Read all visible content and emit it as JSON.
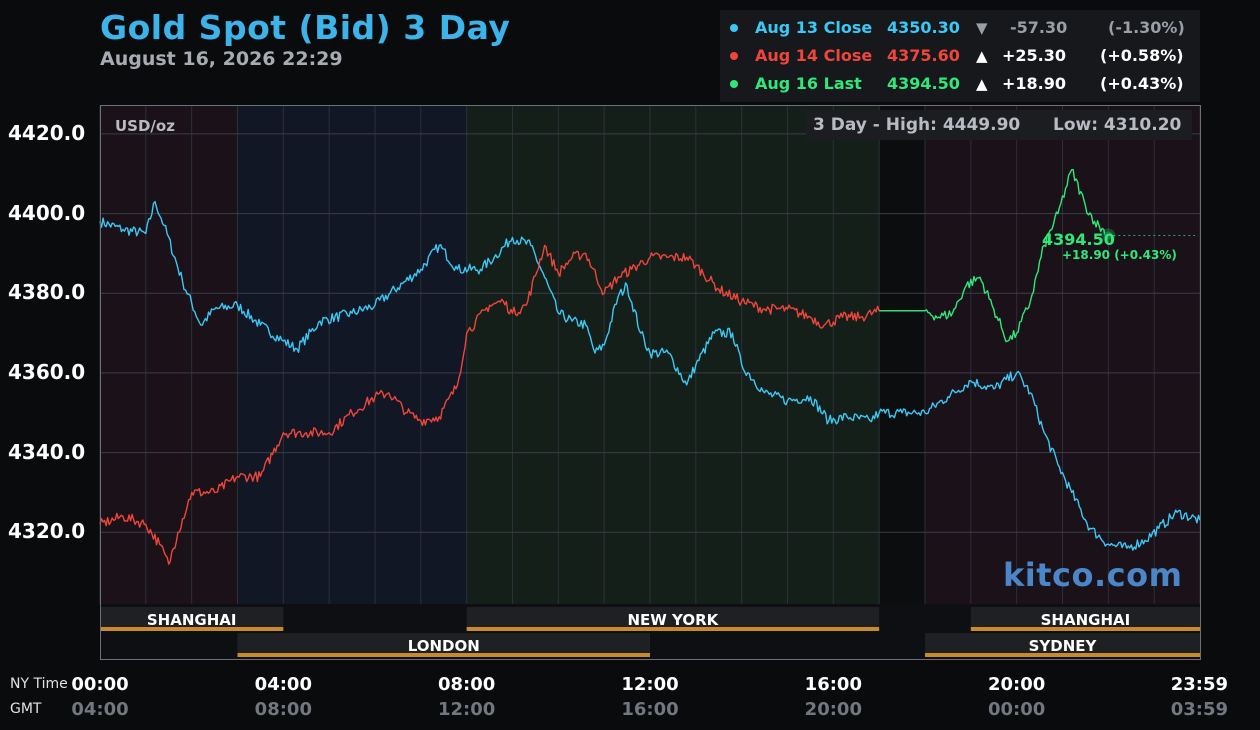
{
  "header": {
    "title": "Gold Spot (Bid) 3 Day",
    "date": "August 16, 2026 22:29"
  },
  "legend": [
    {
      "label": "Aug 13 Close",
      "price": "4350.30",
      "arrow": "▼",
      "change": "-57.30",
      "pct": "(-1.30%)",
      "color": "#3cc8f5",
      "value_color": "#9a9ea6"
    },
    {
      "label": "Aug 14 Close",
      "price": "4375.60",
      "arrow": "▲",
      "change": "+25.30",
      "pct": "(+0.58%)",
      "color": "#f0453a",
      "value_color": "#ffffff"
    },
    {
      "label": "Aug 16 Last",
      "price": "4394.50",
      "arrow": "▲",
      "change": "+18.90",
      "pct": "(+0.43%)",
      "color": "#2ee87a",
      "value_color": "#ffffff"
    }
  ],
  "chart": {
    "unit_label": "USD/oz",
    "high_label": "3 Day - High: 4449.90",
    "low_label": "Low: 4310.20",
    "watermark": "kitco.com",
    "last_price": "4394.50",
    "last_change": "+18.90 (+0.43%)",
    "y_ticks": [
      "4420.0",
      "4400.0",
      "4380.0",
      "4360.0",
      "4340.0",
      "4320.0"
    ],
    "x_ticks_ny": [
      "00:00",
      "04:00",
      "08:00",
      "12:00",
      "16:00",
      "20:00",
      "23:59"
    ],
    "x_ticks_gmt": [
      "04:00",
      "08:00",
      "12:00",
      "16:00",
      "20:00",
      "00:00",
      "03:59"
    ],
    "tz_ny": "NY Time",
    "tz_gmt": "GMT",
    "sessions": [
      {
        "name": "SHANGHAI",
        "start": 0,
        "end": 4,
        "row": 1
      },
      {
        "name": "NEW YORK",
        "start": 8,
        "end": 17,
        "row": 1
      },
      {
        "name": "SHANGHAI",
        "start": 19,
        "end": 24,
        "row": 1
      },
      {
        "name": "LONDON",
        "start": 3,
        "end": 12,
        "row": 2
      },
      {
        "name": "SYDNEY",
        "start": 18,
        "end": 24,
        "row": 2
      }
    ]
  },
  "chart_data": {
    "type": "line",
    "title": "Gold Spot (Bid) 3 Day",
    "ylabel": "USD/oz",
    "ylim": [
      4302,
      4427
    ],
    "xlim_hours": [
      0,
      24
    ],
    "x_unit": "NY time (hours)",
    "series": [
      {
        "name": "Aug 13 Close",
        "color": "#3cc8f5",
        "points": [
          [
            0,
            4398
          ],
          [
            0.5,
            4396
          ],
          [
            1,
            4395
          ],
          [
            1.2,
            4403
          ],
          [
            1.4,
            4397
          ],
          [
            1.8,
            4383
          ],
          [
            2.2,
            4372
          ],
          [
            2.5,
            4376
          ],
          [
            3,
            4377
          ],
          [
            3.5,
            4372
          ],
          [
            4,
            4368
          ],
          [
            4.3,
            4366
          ],
          [
            4.8,
            4373
          ],
          [
            5.5,
            4375
          ],
          [
            6,
            4377
          ],
          [
            7,
            4386
          ],
          [
            7.4,
            4392
          ],
          [
            7.8,
            4386
          ],
          [
            8.3,
            4386
          ],
          [
            8.6,
            4389
          ],
          [
            9,
            4394
          ],
          [
            9.4,
            4392
          ],
          [
            9.7,
            4384
          ],
          [
            10,
            4375
          ],
          [
            10.3,
            4373
          ],
          [
            10.6,
            4372
          ],
          [
            10.8,
            4365
          ],
          [
            11,
            4367
          ],
          [
            11.3,
            4379
          ],
          [
            11.5,
            4382
          ],
          [
            11.8,
            4370
          ],
          [
            12,
            4365
          ],
          [
            12.4,
            4365
          ],
          [
            12.8,
            4357
          ],
          [
            13,
            4362
          ],
          [
            13.4,
            4370
          ],
          [
            13.8,
            4370
          ],
          [
            14,
            4362
          ],
          [
            14.5,
            4355
          ],
          [
            15,
            4353
          ],
          [
            15.5,
            4354
          ],
          [
            15.9,
            4348
          ],
          [
            16.3,
            4349
          ],
          [
            16.8,
            4348
          ],
          [
            17,
            4350
          ],
          [
            17.5,
            4350
          ],
          [
            18,
            4350
          ],
          [
            18.5,
            4354
          ],
          [
            19,
            4358
          ],
          [
            19.5,
            4356
          ],
          [
            20,
            4360
          ],
          [
            20.3,
            4355
          ],
          [
            20.6,
            4345
          ],
          [
            20.9,
            4337
          ],
          [
            21.2,
            4330
          ],
          [
            21.6,
            4321
          ],
          [
            22,
            4317
          ],
          [
            22.4,
            4316
          ],
          [
            22.8,
            4318
          ],
          [
            23.1,
            4321
          ],
          [
            23.5,
            4325
          ],
          [
            24,
            4323
          ]
        ]
      },
      {
        "name": "Aug 14 Close",
        "color": "#f0453a",
        "points": [
          [
            0,
            4322
          ],
          [
            0.5,
            4324
          ],
          [
            1,
            4322
          ],
          [
            1.3,
            4317
          ],
          [
            1.5,
            4312
          ],
          [
            1.7,
            4320
          ],
          [
            2,
            4330
          ],
          [
            2.5,
            4330
          ],
          [
            3,
            4334
          ],
          [
            3.5,
            4334
          ],
          [
            4,
            4345
          ],
          [
            4.5,
            4345
          ],
          [
            5,
            4345
          ],
          [
            5.5,
            4350
          ],
          [
            6,
            4354
          ],
          [
            6.3,
            4355
          ],
          [
            6.7,
            4350
          ],
          [
            7,
            4348
          ],
          [
            7.4,
            4349
          ],
          [
            7.8,
            4357
          ],
          [
            8,
            4370
          ],
          [
            8.5,
            4377
          ],
          [
            8.8,
            4378
          ],
          [
            9,
            4375
          ],
          [
            9.3,
            4377
          ],
          [
            9.7,
            4392
          ],
          [
            10,
            4385
          ],
          [
            10.3,
            4389
          ],
          [
            10.6,
            4390
          ],
          [
            11,
            4380
          ],
          [
            11.3,
            4384
          ],
          [
            11.6,
            4386
          ],
          [
            12,
            4389
          ],
          [
            12.4,
            4389
          ],
          [
            12.8,
            4389
          ],
          [
            13,
            4387
          ],
          [
            13.5,
            4381
          ],
          [
            14,
            4378
          ],
          [
            14.5,
            4376
          ],
          [
            15,
            4376
          ],
          [
            15.5,
            4374
          ],
          [
            15.8,
            4372
          ],
          [
            16.2,
            4374
          ],
          [
            16.6,
            4374
          ],
          [
            17,
            4375.6
          ],
          [
            18,
            4375.6
          ]
        ]
      },
      {
        "name": "Aug 16 Last",
        "color": "#2ee87a",
        "points": [
          [
            17,
            4375.6
          ],
          [
            18,
            4375.6
          ],
          [
            18.3,
            4374
          ],
          [
            18.6,
            4375
          ],
          [
            18.9,
            4382
          ],
          [
            19.2,
            4384
          ],
          [
            19.5,
            4376
          ],
          [
            19.8,
            4368
          ],
          [
            20,
            4370
          ],
          [
            20.3,
            4378
          ],
          [
            20.6,
            4392
          ],
          [
            20.9,
            4400
          ],
          [
            21.2,
            4411
          ],
          [
            21.5,
            4402
          ],
          [
            21.7,
            4398
          ],
          [
            22,
            4394.5
          ]
        ]
      }
    ]
  }
}
